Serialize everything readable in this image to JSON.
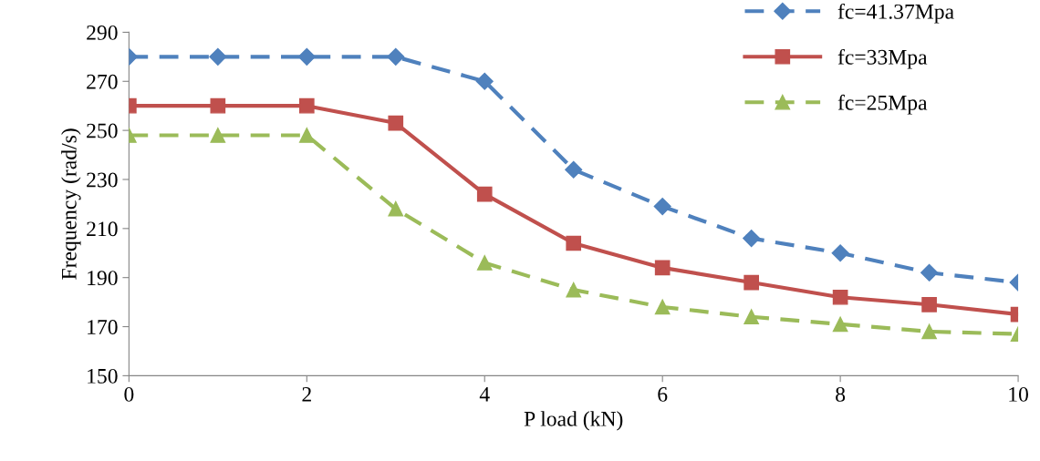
{
  "chart_data": {
    "type": "line",
    "xlabel": "P load (kN)",
    "ylabel": "Frequency (rad/s)",
    "x": [
      0,
      1,
      2,
      3,
      4,
      5,
      6,
      7,
      8,
      9,
      10
    ],
    "series": [
      {
        "name": "fc=41.37Mpa",
        "color": "#4f81bd",
        "marker": "diamond",
        "line_style": "dashed",
        "values": [
          280,
          280,
          280,
          280,
          270,
          234,
          219,
          206,
          200,
          192,
          188
        ]
      },
      {
        "name": "fc=33Mpa",
        "color": "#c0504d",
        "marker": "square",
        "line_style": "solid",
        "values": [
          260,
          260,
          260,
          253,
          224,
          204,
          194,
          188,
          182,
          179,
          175
        ]
      },
      {
        "name": "fc=25Mpa",
        "color": "#9bbb59",
        "marker": "triangle",
        "line_style": "dashed",
        "values": [
          248,
          248,
          248,
          218,
          196,
          185,
          178,
          174,
          171,
          168,
          167
        ]
      }
    ],
    "xlim": [
      0,
      10
    ],
    "xticks": [
      0,
      2,
      4,
      6,
      8,
      10
    ],
    "ylim": [
      150,
      290
    ],
    "yticks": [
      150,
      170,
      190,
      210,
      230,
      250,
      270,
      290
    ],
    "grid": false,
    "legend": "top right"
  }
}
